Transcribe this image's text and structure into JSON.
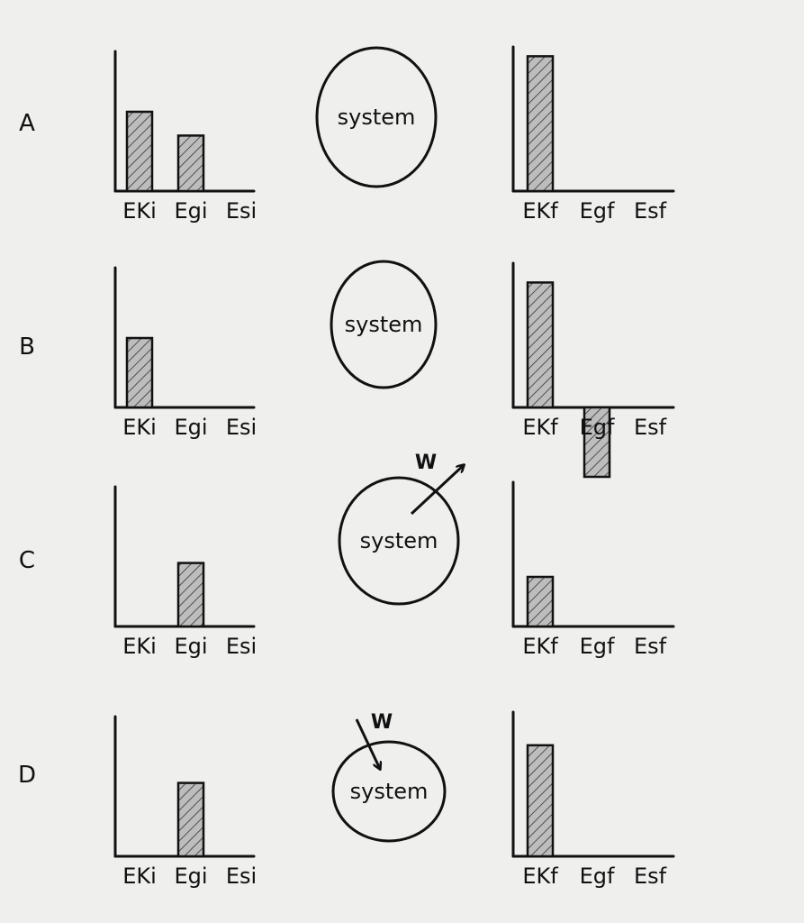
{
  "rows": [
    {
      "label": "A",
      "initial": {
        "ticks": [
          "EKi",
          "Egi",
          "Esi"
        ],
        "values": [
          4,
          2.8,
          0
        ]
      },
      "system": {
        "label": "system",
        "work": null
      },
      "final": {
        "ticks": [
          "EKf",
          "Egf",
          "Esf"
        ],
        "values": [
          6.8,
          0,
          0
        ]
      }
    },
    {
      "label": "B",
      "initial": {
        "ticks": [
          "EKi",
          "Egi",
          "Esi"
        ],
        "values": [
          3.5,
          0,
          0
        ]
      },
      "system": {
        "label": "system",
        "work": null
      },
      "final": {
        "ticks": [
          "EKf",
          "Egf",
          "Esf"
        ],
        "values": [
          6.3,
          -3.5,
          0
        ]
      }
    },
    {
      "label": "C",
      "initial": {
        "ticks": [
          "EKi",
          "Egi",
          "Esi"
        ],
        "values": [
          0,
          3.2,
          0
        ]
      },
      "system": {
        "label": "system",
        "work": {
          "label": "W",
          "direction": "out"
        }
      },
      "final": {
        "ticks": [
          "EKf",
          "Egf",
          "Esf"
        ],
        "values": [
          2.5,
          0,
          0
        ]
      }
    },
    {
      "label": "D",
      "initial": {
        "ticks": [
          "EKi",
          "Egi",
          "Esi"
        ],
        "values": [
          0,
          3.7,
          0
        ]
      },
      "system": {
        "label": "system",
        "work": {
          "label": "W",
          "direction": "in"
        }
      },
      "final": {
        "ticks": [
          "EKf",
          "Egf",
          "Esf"
        ],
        "values": [
          5.6,
          0,
          0
        ]
      }
    }
  ]
}
